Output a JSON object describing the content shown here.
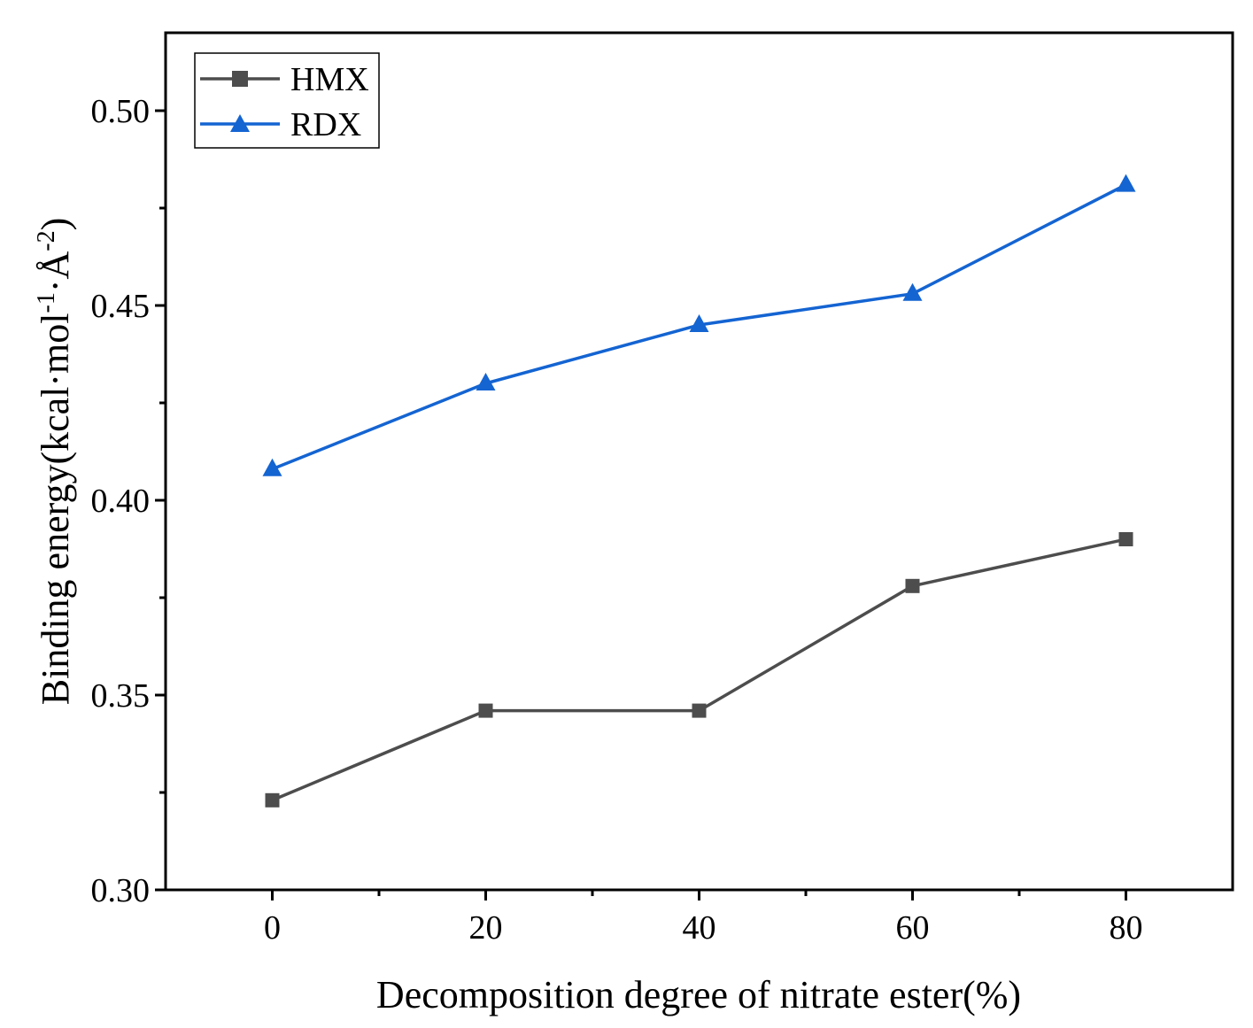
{
  "chart_data": {
    "type": "line",
    "title": "",
    "xlabel": "Decomposition degree of nitrate ester(%)",
    "ylabel": {
      "prefix": "Binding energy(kcal·mol",
      "sup1": "-1",
      "middle": "·Å",
      "sup2": "-2",
      "suffix": ")"
    },
    "x": [
      0,
      20,
      40,
      60,
      80
    ],
    "xlim": [
      -10,
      90
    ],
    "ylim": [
      0.3,
      0.52
    ],
    "xticks": [
      0,
      20,
      40,
      60,
      80
    ],
    "xtick_labels": [
      "0",
      "20",
      "40",
      "60",
      "80"
    ],
    "xminor": [
      10,
      30,
      50,
      70
    ],
    "yticks": [
      0.3,
      0.35,
      0.4,
      0.45,
      0.5
    ],
    "ytick_labels": [
      "0.30",
      "0.35",
      "0.40",
      "0.45",
      "0.50"
    ],
    "yminor": [
      0.325,
      0.375,
      0.425,
      0.475
    ],
    "grid": false,
    "legend_position": "top-left",
    "series": [
      {
        "name": "HMX",
        "color": "#4d4d4d",
        "marker": "square",
        "values": [
          0.323,
          0.346,
          0.346,
          0.378,
          0.39
        ]
      },
      {
        "name": "RDX",
        "color": "#1464d2",
        "marker": "triangle",
        "values": [
          0.408,
          0.43,
          0.445,
          0.453,
          0.481
        ]
      }
    ]
  }
}
